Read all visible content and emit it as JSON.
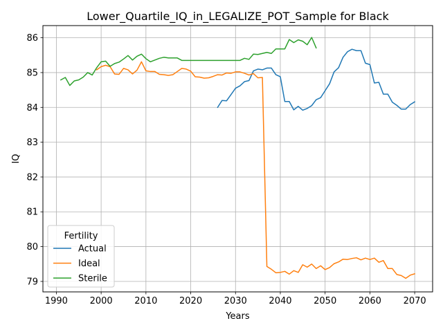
{
  "chart_data": {
    "type": "line",
    "title": "Lower_Quartile_IQ_in_LEGALIZE_POT_Sample for Black",
    "xlabel": "Years",
    "ylabel": "IQ",
    "xlim": [
      1987,
      2074
    ],
    "ylim": [
      78.7,
      86.35
    ],
    "xticks": [
      1990,
      2000,
      2010,
      2020,
      2030,
      2040,
      2050,
      2060,
      2070
    ],
    "yticks": [
      79,
      80,
      81,
      82,
      83,
      84,
      85,
      86
    ],
    "grid": true,
    "legend": {
      "title": "Fertility",
      "placement": "lower-left"
    },
    "series": [
      {
        "name": "Actual",
        "color": "#1f77b4",
        "x": [
          2026,
          2027,
          2028,
          2029,
          2030,
          2031,
          2032,
          2033,
          2034,
          2035,
          2036,
          2037,
          2038,
          2039,
          2040,
          2041,
          2042,
          2043,
          2044,
          2045,
          2046,
          2047,
          2048,
          2049,
          2050,
          2051,
          2052,
          2053,
          2054,
          2055,
          2056,
          2057,
          2058,
          2059,
          2060,
          2061,
          2062,
          2063,
          2064,
          2065,
          2066,
          2067,
          2068,
          2069,
          2070
        ],
        "y": [
          84.0,
          84.2,
          84.19,
          84.37,
          84.55,
          84.62,
          84.74,
          84.77,
          85.05,
          85.1,
          85.08,
          85.13,
          85.13,
          84.94,
          84.88,
          84.17,
          84.17,
          83.93,
          84.03,
          83.92,
          83.97,
          84.05,
          84.22,
          84.28,
          84.48,
          84.68,
          85.02,
          85.14,
          85.44,
          85.6,
          85.67,
          85.63,
          85.63,
          85.27,
          85.23,
          84.7,
          84.72,
          84.38,
          84.38,
          84.15,
          84.06,
          83.95,
          83.95,
          84.08,
          84.16
        ]
      },
      {
        "name": "Ideal",
        "color": "#ff7f0e",
        "x": [
          1999,
          2000,
          2001,
          2002,
          2003,
          2004,
          2005,
          2006,
          2007,
          2008,
          2009,
          2010,
          2011,
          2012,
          2013,
          2014,
          2015,
          2016,
          2017,
          2018,
          2019,
          2020,
          2021,
          2022,
          2023,
          2024,
          2025,
          2026,
          2027,
          2028,
          2029,
          2030,
          2031,
          2032,
          2033,
          2034,
          2035,
          2036,
          2037,
          2038,
          2039,
          2040,
          2041,
          2042,
          2043,
          2044,
          2045,
          2046,
          2047,
          2048,
          2049,
          2050,
          2051,
          2052,
          2053,
          2054,
          2055,
          2056,
          2057,
          2058,
          2059,
          2060,
          2061,
          2062,
          2063,
          2064,
          2065,
          2066,
          2067,
          2068,
          2069,
          2070
        ],
        "y": [
          85.08,
          85.17,
          85.21,
          85.17,
          84.96,
          84.95,
          85.12,
          85.08,
          84.96,
          85.07,
          85.31,
          85.05,
          85.03,
          85.03,
          84.95,
          84.94,
          84.92,
          84.94,
          85.03,
          85.12,
          85.1,
          85.04,
          84.88,
          84.87,
          84.84,
          84.85,
          84.89,
          84.94,
          84.93,
          84.99,
          84.98,
          85.02,
          85.02,
          84.98,
          84.93,
          84.97,
          84.85,
          84.86,
          79.43,
          79.35,
          79.25,
          79.26,
          79.29,
          79.21,
          79.31,
          79.26,
          79.48,
          79.41,
          79.5,
          79.37,
          79.45,
          79.34,
          79.4,
          79.51,
          79.56,
          79.64,
          79.63,
          79.66,
          79.68,
          79.62,
          79.67,
          79.63,
          79.67,
          79.55,
          79.6,
          79.37,
          79.37,
          79.2,
          79.17,
          79.09,
          79.18,
          79.22
        ]
      },
      {
        "name": "Sterile",
        "color": "#2ca02c",
        "x": [
          1991,
          1992,
          1993,
          1994,
          1995,
          1996,
          1997,
          1998,
          1999,
          2000,
          2001,
          2002,
          2003,
          2004,
          2005,
          2006,
          2007,
          2008,
          2009,
          2010,
          2011,
          2012,
          2013,
          2014,
          2015,
          2016,
          2017,
          2018,
          2019,
          2020,
          2021,
          2022,
          2023,
          2024,
          2025,
          2026,
          2027,
          2028,
          2029,
          2030,
          2031,
          2032,
          2033,
          2034,
          2035,
          2036,
          2037,
          2038,
          2039,
          2040,
          2041,
          2042,
          2043,
          2044,
          2045,
          2046,
          2047,
          2048
        ],
        "y": [
          84.79,
          84.86,
          84.63,
          84.76,
          84.79,
          84.87,
          85.0,
          84.93,
          85.14,
          85.31,
          85.33,
          85.18,
          85.26,
          85.3,
          85.39,
          85.49,
          85.36,
          85.47,
          85.53,
          85.4,
          85.31,
          85.36,
          85.41,
          85.44,
          85.42,
          85.42,
          85.42,
          85.35,
          85.35,
          85.35,
          85.35,
          85.35,
          85.35,
          85.35,
          85.35,
          85.35,
          85.35,
          85.35,
          85.35,
          85.35,
          85.35,
          85.41,
          85.38,
          85.53,
          85.52,
          85.55,
          85.58,
          85.55,
          85.68,
          85.68,
          85.68,
          85.95,
          85.86,
          85.94,
          85.9,
          85.8,
          86.01,
          85.71
        ]
      }
    ]
  }
}
